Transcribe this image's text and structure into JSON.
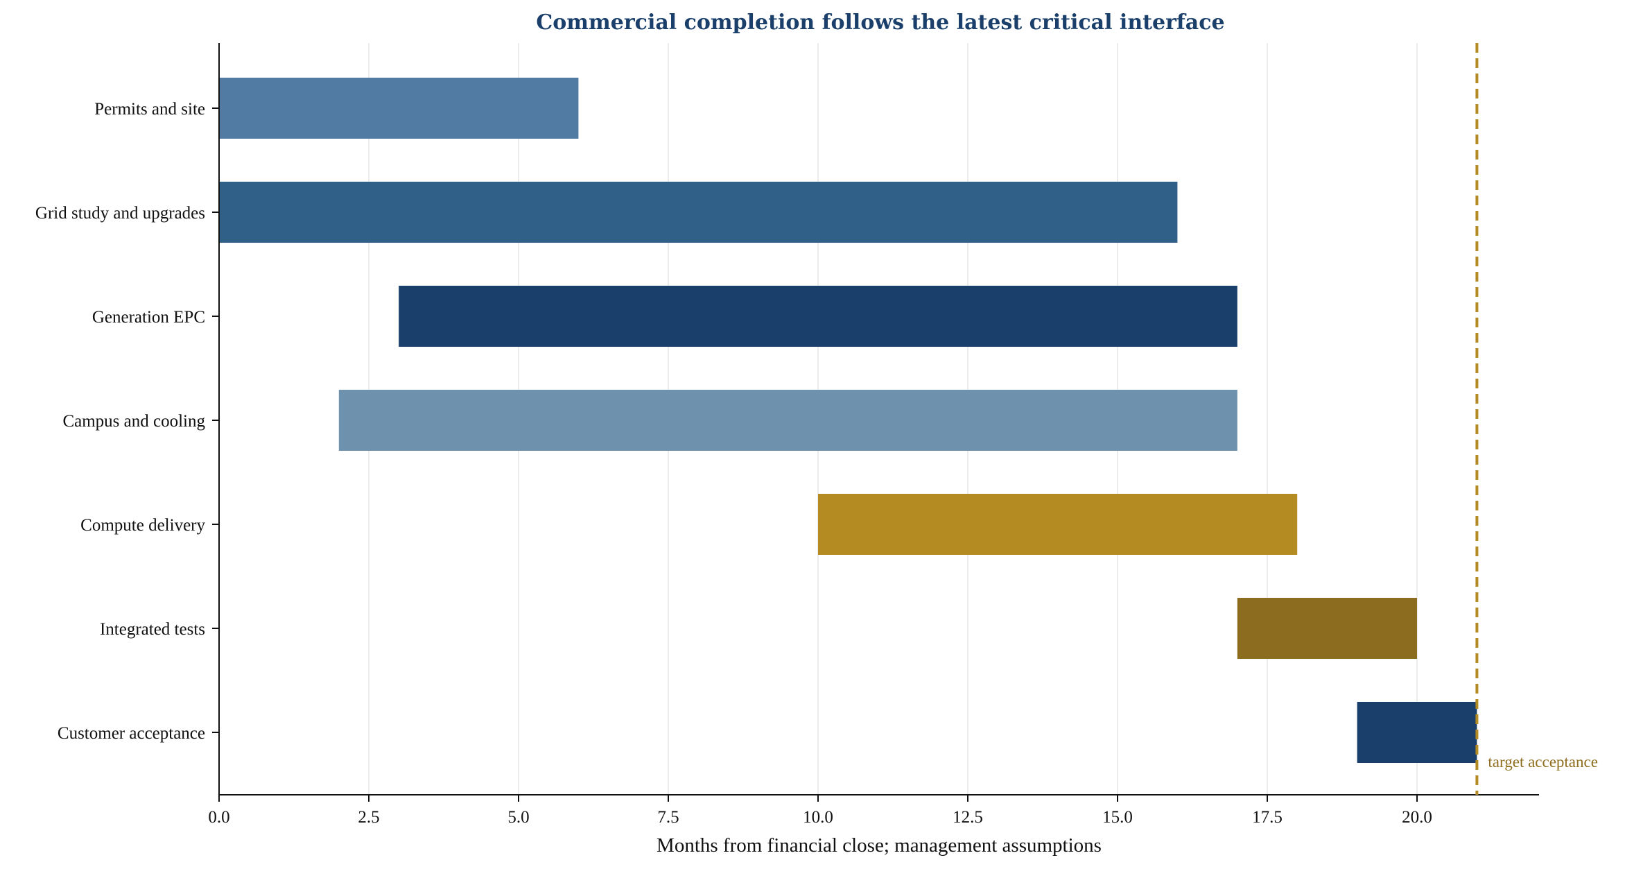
{
  "chart_data": {
    "type": "gantt",
    "title": "Commercial completion follows the latest critical interface",
    "xlabel": "Months from financial close; management assumptions",
    "ylabel": "",
    "xlim": [
      0,
      22
    ],
    "xticks": [
      0.0,
      2.5,
      5.0,
      7.5,
      10.0,
      12.5,
      15.0,
      17.5,
      20.0
    ],
    "xtick_labels": [
      "0.0",
      "2.5",
      "5.0",
      "7.5",
      "10.0",
      "12.5",
      "15.0",
      "17.5",
      "20.0"
    ],
    "grid": "vertical",
    "tasks": [
      {
        "label": "Permits and site",
        "start": 0,
        "end": 6,
        "color": "#517ba2"
      },
      {
        "label": "Grid study and upgrades",
        "start": 0,
        "end": 16,
        "color": "#305f88"
      },
      {
        "label": "Generation EPC",
        "start": 3,
        "end": 17,
        "color": "#1a3f6b"
      },
      {
        "label": "Campus and cooling",
        "start": 2,
        "end": 17,
        "color": "#6e91ae"
      },
      {
        "label": "Compute delivery",
        "start": 10,
        "end": 18,
        "color": "#b38b22"
      },
      {
        "label": "Integrated tests",
        "start": 17,
        "end": 20,
        "color": "#8c6c1f"
      },
      {
        "label": "Customer acceptance",
        "start": 19,
        "end": 21,
        "color": "#1a3f6b"
      }
    ],
    "reference_line": {
      "x": 21,
      "label": "target acceptance",
      "color": "#b38b22",
      "style": "dashed"
    }
  }
}
